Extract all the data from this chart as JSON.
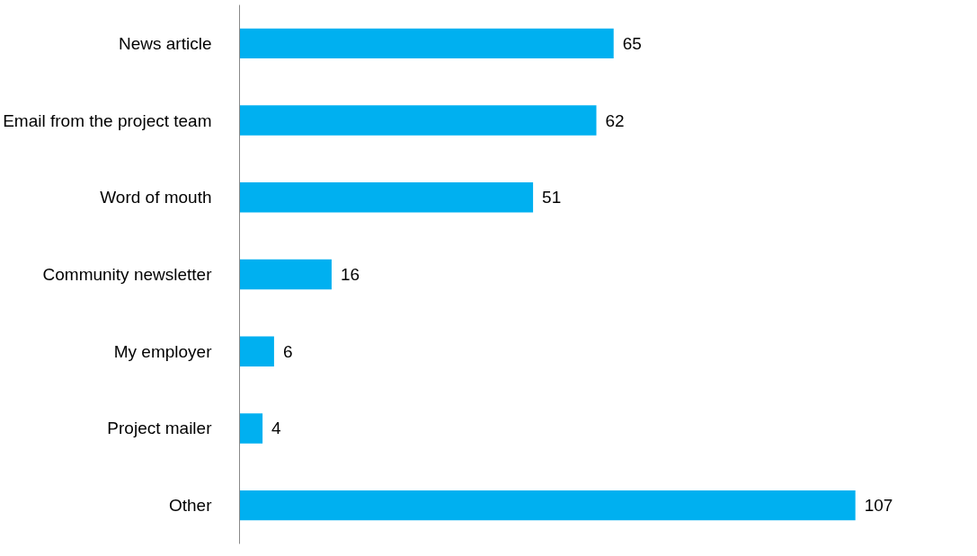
{
  "chart_data": {
    "type": "bar",
    "orientation": "horizontal",
    "categories": [
      "News article",
      "Email from the project team",
      "Word of mouth",
      "Community newsletter",
      "My employer",
      "Project mailer",
      "Other"
    ],
    "values": [
      65,
      62,
      51,
      16,
      6,
      4,
      107
    ],
    "color": "#00b0f0",
    "data_labels": true,
    "grid": false,
    "tick_labels": "y"
  }
}
